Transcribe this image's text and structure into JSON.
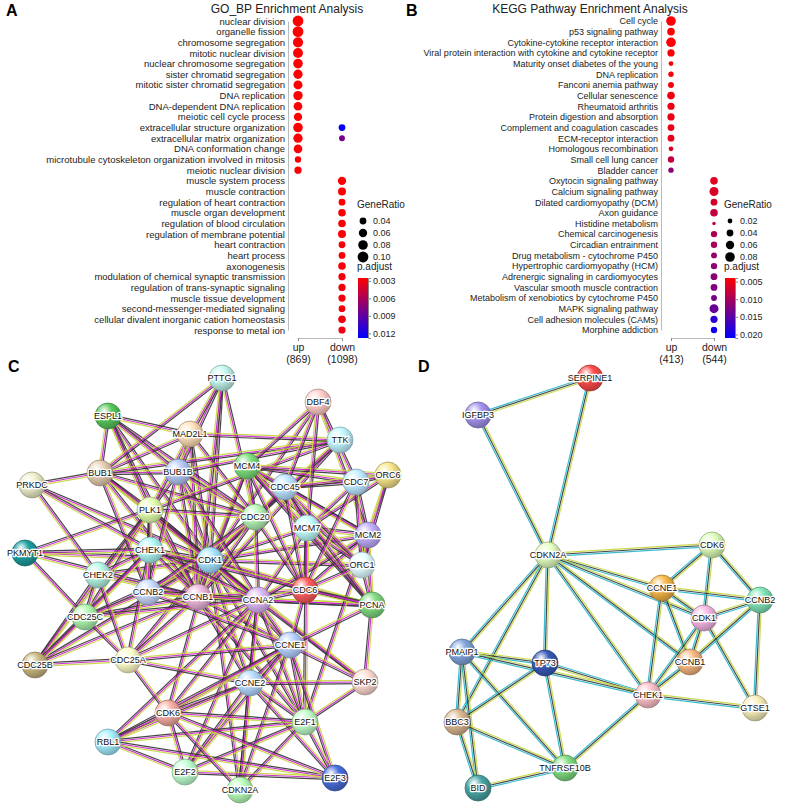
{
  "chart_data": [
    {
      "type": "dot",
      "panel": "A",
      "title": "GO_BP Enrichment Analysis",
      "categories": [
        "nuclear division",
        "organelle fission",
        "chromosome segregation",
        "mitotic nuclear division",
        "nuclear chromosome segregation",
        "sister chromatid segregation",
        "mitotic sister chromatid segregation",
        "DNA replication",
        "DNA-dependent DNA replication",
        "meiotic cell cycle process",
        "extracellular structure organization",
        "extracellular matrix organization",
        "DNA conformation change",
        "microtubule cytoskeleton organization involved in mitosis",
        "meiotic nuclear division",
        "muscle system process",
        "muscle contraction",
        "regulation of heart contraction",
        "muscle organ development",
        "regulation of blood circulation",
        "regulation of membrane potential",
        "heart contraction",
        "heart process",
        "axonogenesis",
        "modulation of chemical synaptic transmission",
        "regulation of trans-synaptic signaling",
        "muscle tissue development",
        "second-messenger-mediated signaling",
        "cellular divalent inorganic cation homeostasis",
        "response to metal ion"
      ],
      "series": [
        {
          "name": "up\n(869)",
          "gene_ratio": [
            0.1,
            0.1,
            0.09,
            0.085,
            0.08,
            0.075,
            0.07,
            0.075,
            0.065,
            0.06,
            0.08,
            0.075,
            0.065,
            0.035,
            0.045,
            null,
            null,
            null,
            null,
            null,
            null,
            null,
            null,
            null,
            null,
            null,
            null,
            null,
            null,
            null
          ],
          "p_adjust": [
            0.0026,
            0.0026,
            0.0026,
            0.0026,
            0.0026,
            0.0026,
            0.0026,
            0.0026,
            0.0026,
            0.0026,
            0.0026,
            0.0026,
            0.0026,
            0.0028,
            0.0027,
            null,
            null,
            null,
            null,
            null,
            null,
            null,
            null,
            null,
            null,
            null,
            null,
            null,
            null,
            null
          ]
        },
        {
          "name": "down\n(1098)",
          "gene_ratio": [
            null,
            null,
            null,
            null,
            null,
            null,
            null,
            null,
            null,
            null,
            0.04,
            0.03,
            null,
            null,
            null,
            0.06,
            0.055,
            0.04,
            0.05,
            0.05,
            0.055,
            0.04,
            0.04,
            0.05,
            0.045,
            0.045,
            0.045,
            0.04,
            0.05,
            0.045
          ],
          "p_adjust": [
            null,
            null,
            null,
            null,
            null,
            null,
            null,
            null,
            null,
            null,
            0.0125,
            0.008,
            null,
            null,
            null,
            0.0026,
            0.0026,
            0.0027,
            0.0027,
            0.0027,
            0.0028,
            0.0028,
            0.0028,
            0.0029,
            0.0029,
            0.0029,
            0.003,
            0.003,
            0.0031,
            0.0032
          ]
        }
      ],
      "size_legend": {
        "title": "GeneRatio",
        "ticks": [
          0.04,
          0.06,
          0.08,
          {
            "value": 0.1,
            "label": "0.10"
          }
        ]
      },
      "color_bar": {
        "title": "p.adjust",
        "range": [
          0.0025,
          0.0128
        ],
        "ticks": [
          0.003,
          0.006,
          0.009,
          0.012
        ]
      }
    },
    {
      "type": "dot",
      "panel": "B",
      "title": "KEGG Pathway Enrichment Analysis",
      "categories": [
        "Cell cycle",
        "p53 signaling pathway",
        "Cytokine-cytokine receptor interaction",
        "Viral protein interaction with cytokine and cytokine receptor",
        "Maturity onset diabetes of the young",
        "DNA replication",
        "Fanconi anemia pathway",
        "Cellular senescence",
        "Rheumatoid arthritis",
        "Protein digestion and absorption",
        "Complement and coagulation cascades",
        "ECM-receptor interaction",
        "Homologous recombination",
        "Small cell lung cancer",
        "Bladder cancer",
        "Oxytocin signaling pathway",
        "Calcium signaling pathway",
        "Dilated cardiomyopathy (DCM)",
        "Axon guidance",
        "Histidine metabolism",
        "Chemical carcinogenesis",
        "Circadian entrainment",
        "Drug metabolism - cytochrome P450",
        "Hypertrophic cardiomyopathy (HCM)",
        "Adrenergic signaling in cardiomyocytes",
        "Vascular smooth muscle contraction",
        "Metabolism of xenobiotics by cytochrome P450",
        "MAPK signaling pathway",
        "Cell adhesion molecules (CAMs)",
        "Morphine addiction"
      ],
      "series": [
        {
          "name": "up\n(413)",
          "gene_ratio": [
            0.08,
            0.05,
            0.08,
            0.045,
            0.02,
            0.025,
            0.03,
            0.05,
            0.045,
            0.045,
            0.04,
            0.04,
            0.02,
            0.035,
            0.025,
            null,
            null,
            null,
            null,
            null,
            null,
            null,
            null,
            null,
            null,
            null,
            null,
            null,
            null,
            null
          ],
          "p_adjust": [
            0.0042,
            0.0042,
            0.0043,
            0.0044,
            0.0046,
            0.0045,
            0.0048,
            0.005,
            0.0052,
            0.0055,
            0.0055,
            0.0058,
            0.0065,
            0.008,
            0.0115,
            null,
            null,
            null,
            null,
            null,
            null,
            null,
            null,
            null,
            null,
            null,
            null,
            null,
            null,
            null
          ]
        },
        {
          "name": "down\n(544)",
          "gene_ratio": [
            null,
            null,
            null,
            null,
            null,
            null,
            null,
            null,
            null,
            null,
            null,
            null,
            null,
            null,
            null,
            0.05,
            0.07,
            0.04,
            0.05,
            0.01,
            0.035,
            0.035,
            0.03,
            0.035,
            0.04,
            0.04,
            0.03,
            0.07,
            0.045,
            0.035
          ],
          "p_adjust": [
            null,
            null,
            null,
            null,
            null,
            null,
            null,
            null,
            null,
            null,
            null,
            null,
            null,
            null,
            null,
            0.006,
            0.0065,
            0.007,
            0.008,
            0.009,
            0.0095,
            0.01,
            0.011,
            0.0115,
            0.012,
            0.0125,
            0.013,
            0.014,
            0.018,
            0.02
          ]
        }
      ],
      "size_legend": {
        "title": "GeneRatio",
        "ticks": [
          0.02,
          0.04,
          0.06,
          0.08
        ]
      },
      "color_bar": {
        "title": "p.adjust",
        "range": [
          0.004,
          0.021
        ],
        "ticks": [
          0.005,
          {
            "value": 0.01,
            "label": "0.010"
          },
          0.015,
          {
            "value": 0.02,
            "label": "0.020"
          }
        ]
      }
    },
    {
      "type": "network",
      "panel": "C",
      "nodes": [
        "PTTG1",
        "DBF4",
        "ESPL1",
        "MAD2L1",
        "TTK",
        "MCM4",
        "BUB1B",
        "BUB1",
        "CDC45",
        "CDC7",
        "ORC6",
        "PRKDC",
        "PLK1",
        "CDC20",
        "MCM7",
        "MCM2",
        "PKMYT1",
        "CHEK1",
        "CHEK2",
        "CDK1",
        "ORC1",
        "PCNA",
        "CDC6",
        "CCNB2",
        "CCNB1",
        "CCNA2",
        "CDC25C",
        "CCNE1",
        "CDC25A",
        "CDC25B",
        "SKP2",
        "CCNE2",
        "CDK6",
        "E2F1",
        "RBL1",
        "E2F2",
        "E2F3",
        "CDKN2A"
      ],
      "edges": {
        "CDK1": [
          "CCNB1",
          "CCNB2",
          "CCNA2",
          "CDC20",
          "PLK1",
          "BUB1",
          "BUB1B",
          "MAD2L1",
          "TTK",
          "CHEK1",
          "CHEK2",
          "CDC25C",
          "CDC25A",
          "CDC25B",
          "PKMYT1",
          "ESPL1",
          "PTTG1",
          "CDC6",
          "MCM2",
          "MCM4",
          "MCM7",
          "CDC45",
          "PCNA",
          "CCNE1",
          "CCNE2",
          "E2F1",
          "CDK6",
          "SKP2",
          "PRKDC",
          "CDKN2A",
          "DBF4",
          "ORC1"
        ],
        "CCNB1": [
          "CCNB2",
          "CCNA2",
          "CDC20",
          "PLK1",
          "BUB1",
          "BUB1B",
          "MAD2L1",
          "TTK",
          "CHEK1",
          "CHEK2",
          "CDC25C",
          "CDC25A",
          "CDC25B",
          "PKMYT1",
          "ESPL1",
          "PTTG1",
          "CDC6",
          "CCNE1",
          "CCNE2",
          "E2F1",
          "PCNA",
          "MCM4"
        ],
        "CCNA2": [
          "CCNB2",
          "CDC20",
          "PLK1",
          "BUB1",
          "BUB1B",
          "CHEK1",
          "CDC25C",
          "CDC25A",
          "CDC6",
          "MCM2",
          "MCM7",
          "PCNA",
          "CCNE1",
          "CCNE2",
          "E2F1",
          "E2F2",
          "SKP2",
          "CDK6",
          "RBL1",
          "CDKN2A"
        ],
        "CDC20": [
          "CCNB2",
          "PLK1",
          "BUB1",
          "BUB1B",
          "MAD2L1",
          "TTK",
          "ESPL1",
          "PTTG1",
          "CDC6",
          "MCM4",
          "CDC45"
        ],
        "PLK1": [
          "BUB1",
          "BUB1B",
          "MAD2L1",
          "TTK",
          "CHEK1",
          "CHEK2",
          "CDC25C",
          "CDC25B",
          "PKMYT1",
          "ESPL1",
          "CCNB2"
        ],
        "BUB1": [
          "BUB1B",
          "MAD2L1",
          "TTK",
          "ESPL1",
          "PTTG1",
          "CCNB2",
          "PRKDC"
        ],
        "BUB1B": [
          "MAD2L1",
          "TTK",
          "ESPL1",
          "PTTG1",
          "CCNB2"
        ],
        "MAD2L1": [
          "TTK",
          "ESPL1",
          "PTTG1"
        ],
        "MCM2": [
          "MCM4",
          "MCM7",
          "CDC45",
          "CDC7",
          "DBF4",
          "ORC1",
          "ORC6",
          "PCNA",
          "CDC6",
          "E2F1"
        ],
        "MCM4": [
          "MCM7",
          "CDC45",
          "CDC7",
          "DBF4",
          "ORC1",
          "ORC6",
          "PCNA",
          "CDC6"
        ],
        "MCM7": [
          "CDC45",
          "CDC7",
          "DBF4",
          "ORC1",
          "ORC6",
          "PCNA",
          "CDC6",
          "E2F1"
        ],
        "CDC45": [
          "CDC7",
          "DBF4",
          "ORC1",
          "ORC6",
          "PCNA",
          "CDC6"
        ],
        "CDC7": [
          "DBF4",
          "ORC1",
          "ORC6",
          "CDC6"
        ],
        "ORC1": [
          "ORC6",
          "CDC6",
          "PCNA"
        ],
        "CHEK1": [
          "CHEK2",
          "CDC25C",
          "CDC25A",
          "CDC25B",
          "PKMYT1",
          "PRKDC",
          "PCNA"
        ],
        "CHEK2": [
          "CDC25C",
          "CDC25A",
          "CDC25B",
          "PRKDC"
        ],
        "CDC25C": [
          "CDC25A",
          "CDC25B",
          "PKMYT1"
        ],
        "CDC25A": [
          "CDC25B",
          "CCNE1",
          "CCNE2",
          "CDK6"
        ],
        "CCNE1": [
          "CCNE2",
          "E2F1",
          "E2F2",
          "E2F3",
          "CDK6",
          "RBL1",
          "SKP2",
          "CDKN2A",
          "PCNA",
          "CDC6"
        ],
        "CCNE2": [
          "E2F1",
          "E2F2",
          "E2F3",
          "CDK6",
          "RBL1",
          "SKP2",
          "CDKN2A"
        ],
        "E2F1": [
          "E2F2",
          "E2F3",
          "RBL1",
          "CDK6",
          "CDKN2A",
          "SKP2"
        ],
        "E2F2": [
          "E2F3",
          "RBL1",
          "CDK6"
        ],
        "E2F3": [
          "RBL1",
          "CDK6"
        ],
        "CDK6": [
          "RBL1",
          "CDKN2A"
        ],
        "PCNA": [
          "SKP2",
          "CDC6"
        ],
        "CCNB2": [
          "CHEK1",
          "CDC25C",
          "CCNE1"
        ]
      }
    },
    {
      "type": "network",
      "panel": "D",
      "nodes": [
        "SERPINE1",
        "IGFBP3",
        "CDKN2A",
        "CDK6",
        "CCNE1",
        "CCNB2",
        "CDK1",
        "CCNB1",
        "CHEK1",
        "GTSE1",
        "PMAIP1",
        "TP73",
        "BBC3",
        "BID",
        "TNFRSF10B"
      ],
      "edges": {
        "SERPINE1": [
          "IGFBP3",
          "CDKN2A"
        ],
        "IGFBP3": [
          "CDKN2A"
        ],
        "CDKN2A": [
          "CDK6",
          "CCNE1",
          "CDK1",
          "CCNB1",
          "TP73",
          "PMAIP1",
          "CHEK1",
          "BBC3"
        ],
        "CDK6": [
          "CCNE1",
          "CDK1",
          "CCNB2"
        ],
        "CCNE1": [
          "CDK1",
          "CCNB1",
          "CHEK1",
          "CCNB2"
        ],
        "CDK1": [
          "CCNB2",
          "CCNB1",
          "CHEK1",
          "GTSE1"
        ],
        "CCNB1": [
          "CCNB2",
          "CHEK1"
        ],
        "CCNB2": [
          "GTSE1"
        ],
        "CHEK1": [
          "GTSE1",
          "TP73",
          "TNFRSF10B"
        ],
        "PMAIP1": [
          "TP73",
          "CHEK1",
          "BBC3",
          "BID",
          "TNFRSF10B"
        ],
        "TP73": [
          "TNFRSF10B",
          "BBC3"
        ],
        "BBC3": [
          "BID",
          "TNFRSF10B"
        ],
        "BID": [
          "TNFRSF10B"
        ]
      }
    }
  ]
}
